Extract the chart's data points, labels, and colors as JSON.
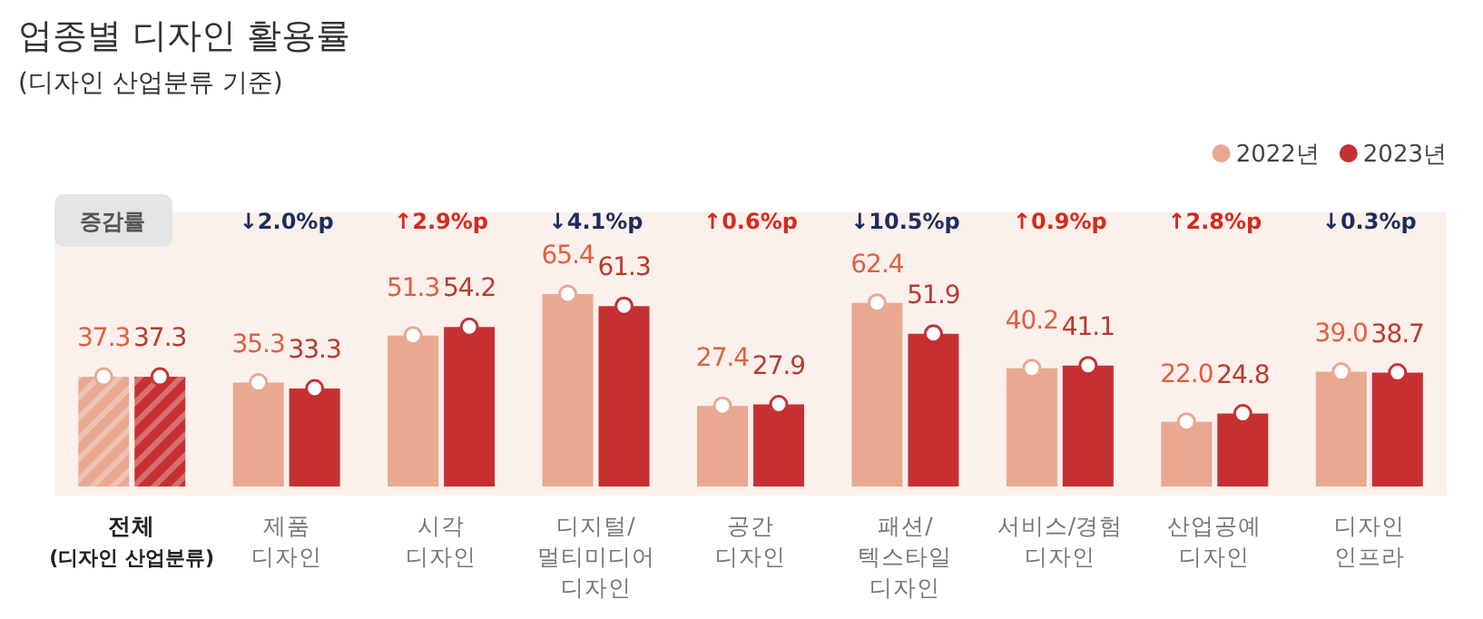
{
  "chart_data": {
    "type": "bar",
    "title": "업종별 디자인 활용률",
    "subtitle": "(디자인 산업분류 기준)",
    "categories": [
      "전체\n$_{(디자인 산업분류)}$",
      "제품\n디자인",
      "시각\n디자인",
      "디지털/\n멀티미디어\n디자인",
      "공간\n디자인",
      "패션/\n텍스타일\n디자인",
      "서비스/경험\n디자인",
      "산업공예\n디자인",
      "디자인\n인프라"
    ],
    "series": [
      {
        "name": "2022년",
        "color": "#e8a990",
        "values": [
          37.3,
          35.3,
          51.3,
          65.4,
          27.4,
          62.4,
          40.2,
          22.0,
          39.0
        ],
        "value_labels": [
          "37.3",
          "35.3",
          "51.3",
          "65.4",
          "27.4",
          "62.4",
          "40.2",
          "22.0",
          "39.0"
        ]
      },
      {
        "name": "2023년",
        "color": "#c63033",
        "values": [
          37.3,
          33.3,
          54.2,
          61.3,
          27.9,
          51.9,
          41.1,
          24.8,
          38.7
        ],
        "value_labels": [
          "37.3",
          "33.3",
          "54.2",
          "61.3",
          "27.9",
          "51.9",
          "41.1",
          "24.8",
          "38.7"
        ]
      },
      {
        "type": "scatter",
        "color": "#ffffff",
        "x": [
          "전체\n$_{(디자인 산업분류)}$",
          "제품\n디자인",
          "시각\n디자인",
          "디지털/\n멀티미디어\n디자인",
          "공간\n디자인",
          "패션/\n텍스타일\n디자인",
          "서비스/경험\n디자인",
          "산업공예\n디자인",
          "디자인\n인프라"
        ],
        "values": [
          37.3,
          35.3,
          51.3,
          65.4,
          27.4,
          62.4,
          40.2,
          22.0,
          39.0
        ]
      },
      {
        "type": "scatter",
        "color": "#ffffff",
        "x": [
          "전체\n$_{(디자인 산업분류)}$",
          "제품\n디자인",
          "시각\n디자인",
          "디지털/\n멀티미디어\n디자인",
          "공간\n디자인",
          "패션/\n텍스타일\n디자인",
          "서비스/경험\n디자인",
          "산업공예\n디자인",
          "디자인\n인프라"
        ],
        "values": [
          37.3,
          33.3,
          54.2,
          61.3,
          27.9,
          51.9,
          41.1,
          24.8,
          38.7
        ]
      }
    ],
    "marker": "circle",
    "legend": "top right",
    "annotations": [
      "증감률",
      "↓2.0%p",
      "↑2.9%p",
      "↓4.1%p",
      "↑0.6%p",
      "↓10.5%p",
      "↑0.9%p",
      "↑2.8%p",
      "↓0.3%p"
    ]
  }
}
